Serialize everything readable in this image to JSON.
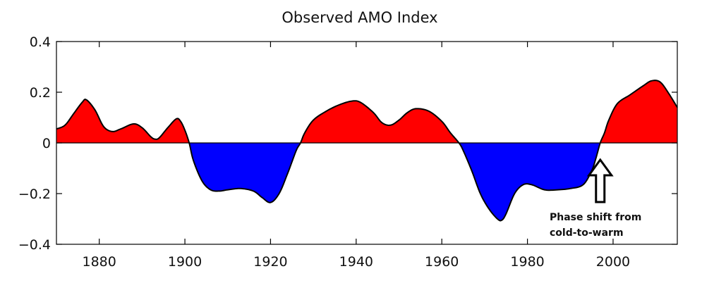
{
  "chart_data": {
    "type": "area",
    "title": "Observed AMO Index",
    "xlabel": "",
    "ylabel": "",
    "xlim": [
      1870,
      2015
    ],
    "ylim": [
      -0.4,
      0.4
    ],
    "xticks": [
      1880,
      1900,
      1920,
      1940,
      1960,
      1980,
      2000
    ],
    "xtick_labels": [
      "1880",
      "1900",
      "1920",
      "1940",
      "1960",
      "1980",
      "2000"
    ],
    "yticks": [
      0.4,
      0.2,
      0,
      -0.2,
      -0.4
    ],
    "ytick_labels": [
      "0.4",
      "0.2",
      "0",
      "−0.2",
      "−0.4"
    ],
    "grid": false,
    "positive_color": "#ff0000",
    "negative_color": "#0000ff",
    "series": [
      {
        "x": [
          1870,
          1872,
          1874,
          1876,
          1877,
          1879,
          1881,
          1883,
          1885,
          1888,
          1890,
          1892,
          1893,
          1894,
          1896,
          1898,
          1899,
          1900,
          1901,
          1902,
          1904,
          1906,
          1908,
          1910,
          1913,
          1916,
          1918,
          1920,
          1922,
          1924,
          1926,
          1927,
          1928,
          1930,
          1933,
          1936,
          1939,
          1941,
          1944,
          1946,
          1948,
          1950,
          1952,
          1954,
          1957,
          1960,
          1962,
          1964,
          1965,
          1967,
          1969,
          1971,
          1973,
          1974,
          1975,
          1977,
          1979,
          1981,
          1984,
          1987,
          1990,
          1993,
          1995,
          1996,
          1997,
          1998,
          1999,
          2001,
          2004,
          2007,
          2009,
          2011,
          2013,
          2015
        ],
        "y": [
          0.055,
          0.07,
          0.115,
          0.16,
          0.17,
          0.13,
          0.065,
          0.045,
          0.055,
          0.075,
          0.06,
          0.025,
          0.015,
          0.02,
          0.06,
          0.095,
          0.085,
          0.05,
          0.0,
          -0.07,
          -0.15,
          -0.185,
          -0.19,
          -0.185,
          -0.18,
          -0.19,
          -0.215,
          -0.235,
          -0.2,
          -0.12,
          -0.03,
          0.0,
          0.04,
          0.09,
          0.125,
          0.15,
          0.165,
          0.16,
          0.12,
          0.08,
          0.07,
          0.09,
          0.12,
          0.135,
          0.125,
          0.085,
          0.04,
          0.0,
          -0.03,
          -0.11,
          -0.2,
          -0.26,
          -0.3,
          -0.305,
          -0.28,
          -0.2,
          -0.165,
          -0.165,
          -0.185,
          -0.185,
          -0.18,
          -0.165,
          -0.11,
          -0.06,
          0.0,
          0.04,
          0.09,
          0.155,
          0.19,
          0.225,
          0.245,
          0.24,
          0.195,
          0.14
        ]
      }
    ],
    "annotation": {
      "text_lines": [
        "Phase shift from",
        "cold-to-warm"
      ],
      "x": 1997
    }
  }
}
